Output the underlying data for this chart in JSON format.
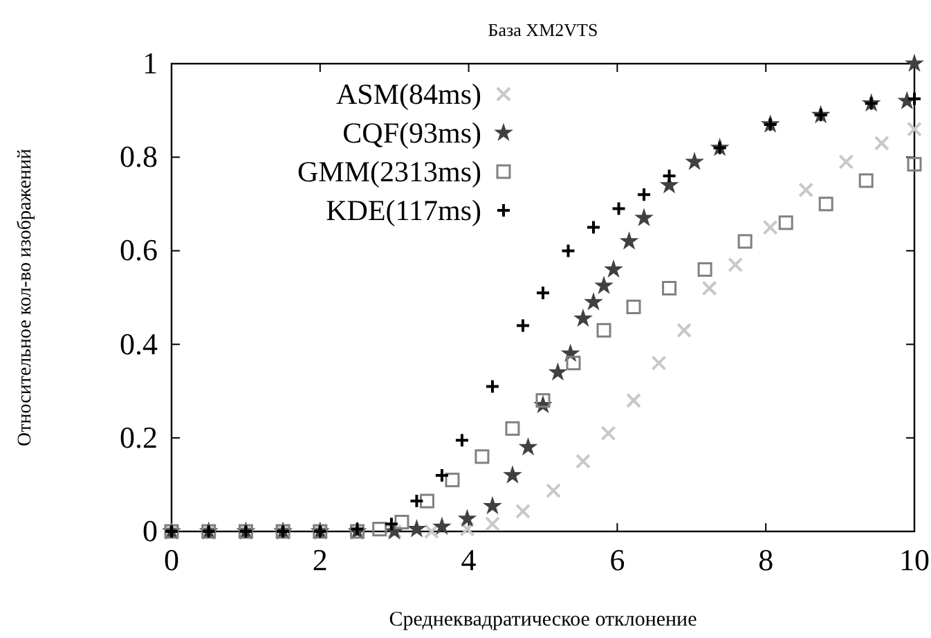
{
  "chart_data": {
    "type": "scatter",
    "title": "База XM2VTS",
    "xlabel": "Среднеквадратическое отклонение",
    "ylabel": "Относительное кол-во изображений",
    "xlim": [
      0,
      10
    ],
    "ylim": [
      0,
      1
    ],
    "xticks": [
      0,
      2,
      4,
      6,
      8,
      10
    ],
    "yticks": [
      0,
      0.2,
      0.4,
      0.6,
      0.8,
      1
    ],
    "grid": false,
    "legend": "top left",
    "series": [
      {
        "name": "ASM(84ms)",
        "color": "#c8c8c8",
        "marker": "cross",
        "x": [
          0,
          0.5,
          1,
          1.5,
          2,
          2.5,
          3,
          3.5,
          3.98,
          4.32,
          4.73,
          5.14,
          5.54,
          5.88,
          6.22,
          6.56,
          6.9,
          7.24,
          7.59,
          8.06,
          8.54,
          9.08,
          9.56,
          10
        ],
        "values": [
          0,
          0,
          0,
          0,
          0,
          0,
          0,
          0,
          0.005,
          0.016,
          0.043,
          0.087,
          0.15,
          0.21,
          0.28,
          0.36,
          0.43,
          0.52,
          0.57,
          0.65,
          0.73,
          0.79,
          0.83,
          0.86
        ]
      },
      {
        "name": "CQF(93ms)",
        "color": "#404040",
        "marker": "star",
        "x": [
          0,
          0.5,
          1,
          1.5,
          2,
          2.5,
          3,
          3.3,
          3.64,
          3.98,
          4.32,
          4.59,
          4.8,
          5.0,
          5.2,
          5.37,
          5.54,
          5.68,
          5.82,
          5.95,
          6.16,
          6.36,
          6.7,
          7.04,
          7.38,
          8.06,
          8.74,
          9.42,
          9.9,
          10
        ],
        "values": [
          0,
          0,
          0,
          0,
          0,
          0,
          0,
          0.005,
          0.01,
          0.027,
          0.054,
          0.12,
          0.18,
          0.27,
          0.34,
          0.38,
          0.455,
          0.49,
          0.525,
          0.56,
          0.62,
          0.67,
          0.74,
          0.79,
          0.82,
          0.87,
          0.89,
          0.915,
          0.92,
          1
        ]
      },
      {
        "name": "GMM(2313ms)",
        "color": "#808080",
        "marker": "square",
        "x": [
          0,
          0.5,
          1,
          1.5,
          2,
          2.5,
          2.8,
          3.1,
          3.44,
          3.78,
          4.18,
          4.59,
          5.0,
          5.41,
          5.82,
          6.22,
          6.7,
          7.18,
          7.72,
          8.27,
          8.81,
          9.35,
          10
        ],
        "values": [
          0,
          0,
          0,
          0,
          0,
          0,
          0.005,
          0.02,
          0.065,
          0.11,
          0.16,
          0.22,
          0.28,
          0.36,
          0.43,
          0.48,
          0.52,
          0.56,
          0.62,
          0.66,
          0.7,
          0.75,
          0.785
        ]
      },
      {
        "name": "KDE(117ms)",
        "color": "#000000",
        "marker": "plus",
        "x": [
          0,
          0.5,
          1,
          1.5,
          2,
          2.5,
          2.96,
          3.3,
          3.64,
          3.91,
          4.32,
          4.73,
          5.0,
          5.34,
          5.68,
          6.02,
          6.36,
          6.7,
          7.38,
          8.06,
          8.74,
          9.42,
          10
        ],
        "values": [
          0,
          0,
          0,
          0,
          0,
          0.005,
          0.016,
          0.065,
          0.12,
          0.195,
          0.31,
          0.44,
          0.51,
          0.6,
          0.65,
          0.69,
          0.72,
          0.76,
          0.82,
          0.87,
          0.89,
          0.915,
          0.925
        ]
      }
    ]
  }
}
